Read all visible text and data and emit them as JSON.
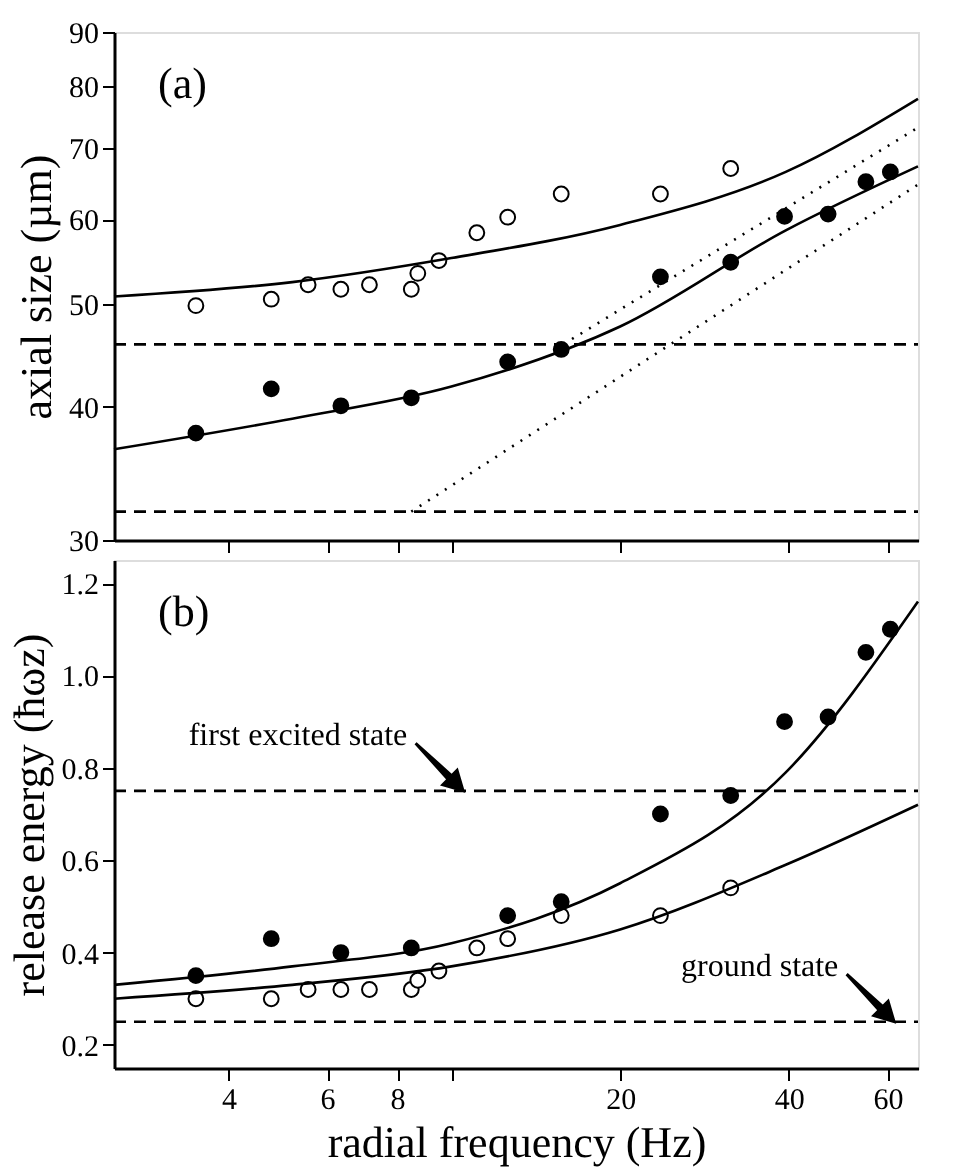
{
  "chart_data": [
    {
      "type": "scatter",
      "ylabel": "axial size (µm)",
      "annotations": [
        "(a)"
      ],
      "log": "xy",
      "xlim": [
        2.5,
        68
      ],
      "xticks": [
        4,
        6,
        8,
        {
          "value": 10,
          "label": null
        },
        20,
        40,
        60
      ],
      "ylim": [
        30,
        90
      ],
      "yticks": [
        30,
        40,
        50,
        60,
        70,
        80,
        90
      ],
      "tick_labels": "y",
      "grid": false,
      "marker": "circle",
      "series": [
        {
          "color": "#ffffff",
          "x": [
            3.5,
            4.77,
            5.55,
            6.35,
            7.14,
            8.48,
            8.71,
            9.5,
            11.1,
            12.6,
            15.7,
            23.6,
            31.5
          ],
          "values": [
            49.8,
            50.5,
            52.1,
            51.6,
            52.1,
            51.6,
            53.4,
            54.9,
            58.3,
            60.3,
            63.4,
            63.4,
            67.0
          ]
        },
        {
          "color": "#000000",
          "x": [
            3.5,
            4.77,
            6.35,
            8.48,
            12.6,
            15.7,
            23.6,
            31.5,
            39.3,
            47.0,
            54.9,
            60.7
          ],
          "values": [
            37.8,
            41.6,
            40.1,
            40.8,
            44.1,
            45.3,
            53.0,
            54.7,
            60.4,
            60.7,
            65.1,
            66.5
          ]
        },
        {
          "type": "line",
          "color": "#000000",
          "line_style": "solid",
          "marker": "none",
          "x": [
            2.5,
            5.2,
            10,
            20,
            39.5,
            68
          ],
          "values": [
            50.8,
            52.4,
            55.2,
            59.3,
            66.5,
            77.9
          ]
        },
        {
          "type": "line",
          "color": "#000000",
          "line_style": "solid",
          "marker": "none",
          "x": [
            2.5,
            5.2,
            10,
            20,
            39.5,
            68
          ],
          "values": [
            36.5,
            39.0,
            41.8,
            47.6,
            58.6,
            67.3
          ]
        },
        {
          "type": "line",
          "color": "#000000",
          "line_style": "dotted",
          "marker": "none",
          "x": [
            15.3,
            68
          ],
          "values": [
            45.3,
            73.2
          ]
        },
        {
          "type": "line",
          "color": "#000000",
          "line_style": "dotted",
          "marker": "none",
          "x": [
            8.48,
            68
          ],
          "values": [
            31.9,
            64.7
          ]
        }
      ],
      "ref_lines": [
        {
          "axis": "y",
          "value": 45.8,
          "line_style": "dashed"
        },
        {
          "axis": "y",
          "value": 31.9,
          "line_style": "dashed"
        }
      ]
    },
    {
      "type": "scatter",
      "xlabel": "radial frequency (Hz)",
      "ylabel": "release energy (ħωz)",
      "annotations": [
        "(b)",
        {
          "text": "first excited state",
          "x": 10.5,
          "y": 0.75
        },
        {
          "text": "ground state",
          "x": 61.7,
          "y": 0.25
        }
      ],
      "log": "x",
      "xlim": [
        2.5,
        68
      ],
      "xticks": [
        4,
        6,
        8,
        {
          "value": 10,
          "label": null
        },
        20,
        40,
        60
      ],
      "ylim": [
        0.15,
        1.25
      ],
      "yticks": [
        0.2,
        0.4,
        0.6,
        0.8,
        {
          "value": 1,
          "label": "1.0"
        },
        1.2
      ],
      "grid": false,
      "marker": "circle",
      "series": [
        {
          "color": "#ffffff",
          "x": [
            3.5,
            4.77,
            5.55,
            6.35,
            7.14,
            8.48,
            8.71,
            9.5,
            11.1,
            12.6,
            15.7,
            23.6,
            31.5
          ],
          "values": [
            0.3,
            0.3,
            0.32,
            0.32,
            0.32,
            0.32,
            0.34,
            0.36,
            0.41,
            0.43,
            0.48,
            0.48,
            0.54
          ]
        },
        {
          "color": "#000000",
          "x": [
            3.5,
            4.77,
            6.35,
            8.48,
            12.6,
            15.7,
            23.6,
            31.5,
            39.3,
            47.0,
            54.9,
            60.7
          ],
          "values": [
            0.35,
            0.43,
            0.4,
            0.41,
            0.48,
            0.51,
            0.7,
            0.74,
            0.9,
            0.91,
            1.05,
            1.1
          ]
        },
        {
          "type": "line",
          "color": "#000000",
          "line_style": "solid",
          "marker": "none",
          "x": [
            2.5,
            5.2,
            10,
            20,
            39.5,
            68
          ],
          "values": [
            0.33,
            0.37,
            0.42,
            0.55,
            0.79,
            1.16
          ]
        },
        {
          "type": "line",
          "color": "#000000",
          "line_style": "solid",
          "marker": "none",
          "x": [
            2.5,
            5.2,
            10,
            20,
            39.5,
            68
          ],
          "values": [
            0.3,
            0.33,
            0.37,
            0.45,
            0.59,
            0.72
          ]
        }
      ],
      "ref_lines": [
        {
          "axis": "y",
          "value": 0.75,
          "line_style": "dashed"
        },
        {
          "axis": "y",
          "value": 0.25,
          "line_style": "dashed"
        }
      ]
    }
  ]
}
